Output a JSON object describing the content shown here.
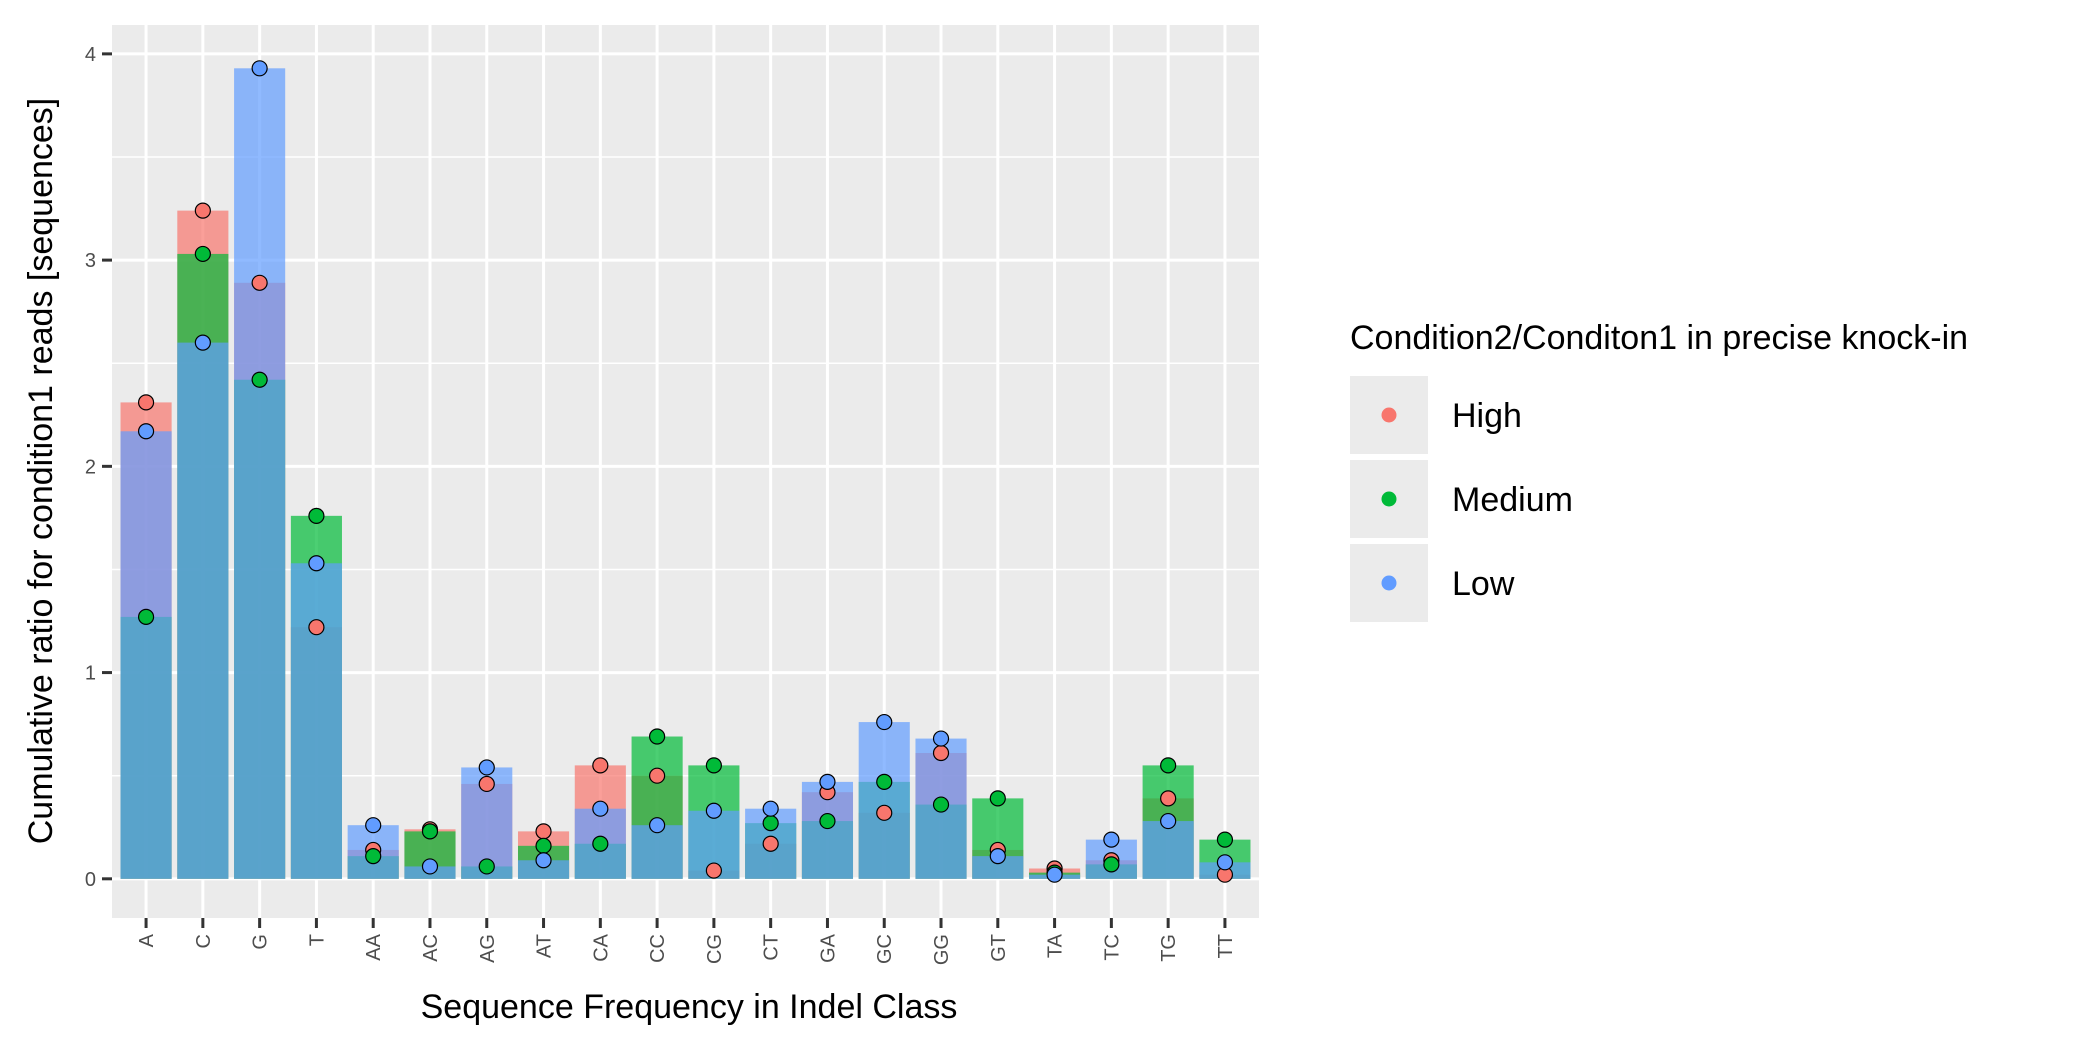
{
  "chart_data": {
    "type": "bar",
    "title": "",
    "xlabel": "Sequence Frequency in Indel Class",
    "ylabel": "Cumulative ratio for condition1 reads [sequences]",
    "ylim": [
      -0.19,
      4.14
    ],
    "yticks": [
      0,
      1,
      2,
      3,
      4
    ],
    "grid": true,
    "legend": {
      "title": "Condition2/Conditon1 in precise knock-in",
      "position": "right"
    },
    "categories": [
      "A",
      "C",
      "G",
      "T",
      "AA",
      "AC",
      "AG",
      "AT",
      "CA",
      "CC",
      "CG",
      "CT",
      "GA",
      "GC",
      "GG",
      "GT",
      "TA",
      "TC",
      "TG",
      "TT"
    ],
    "series": [
      {
        "name": "High",
        "color": "#F8766D",
        "values": [
          2.31,
          3.24,
          2.89,
          1.22,
          0.14,
          0.24,
          0.46,
          0.23,
          0.55,
          0.5,
          0.04,
          0.17,
          0.42,
          0.32,
          0.61,
          0.14,
          0.05,
          0.09,
          0.39,
          0.02
        ]
      },
      {
        "name": "Medium",
        "color": "#00BA38",
        "values": [
          1.27,
          3.03,
          2.42,
          1.76,
          0.11,
          0.23,
          0.06,
          0.16,
          0.17,
          0.69,
          0.55,
          0.27,
          0.28,
          0.47,
          0.36,
          0.39,
          0.03,
          0.07,
          0.55,
          0.19
        ]
      },
      {
        "name": "Low",
        "color": "#619CFF",
        "values": [
          2.17,
          2.6,
          3.93,
          1.53,
          0.26,
          0.06,
          0.54,
          0.09,
          0.34,
          0.26,
          0.33,
          0.34,
          0.47,
          0.76,
          0.68,
          0.11,
          0.02,
          0.19,
          0.28,
          0.08
        ]
      }
    ]
  }
}
